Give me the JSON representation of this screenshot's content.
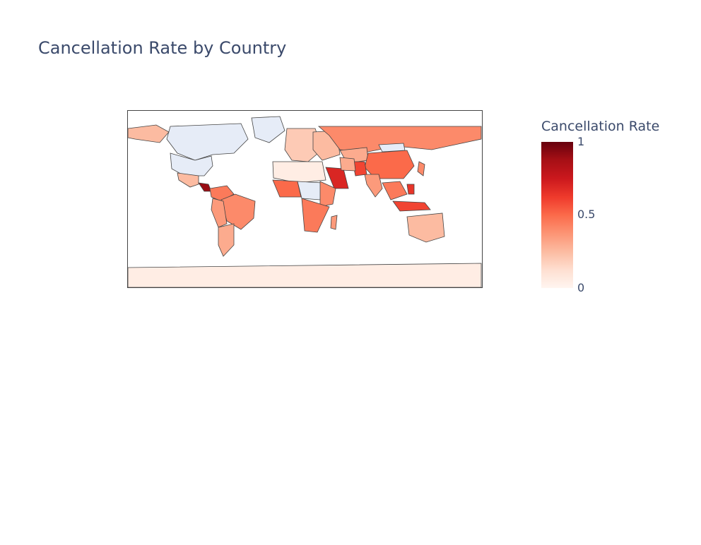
{
  "title": "Cancellation Rate by Country",
  "colorbar": {
    "title": "Cancellation Rate",
    "ticks": [
      "1",
      "0.5",
      "0"
    ],
    "colorscale": [
      "#fff5f0",
      "#fee0d2",
      "#fcbba1",
      "#fc9272",
      "#fb6a4a",
      "#ef3b2c",
      "#cb181d",
      "#a50f15",
      "#67000d"
    ],
    "no_data_color": "#e6ecf7"
  },
  "chart_data": {
    "type": "choropleth",
    "projection": "equirectangular",
    "z_range": [
      0,
      1
    ],
    "locations": [
      {
        "region": "Canada",
        "value": null
      },
      {
        "region": "Greenland",
        "value": null
      },
      {
        "region": "United States",
        "value": null
      },
      {
        "region": "Alaska",
        "value": 0.25
      },
      {
        "region": "Mexico",
        "value": 0.25
      },
      {
        "region": "Central America",
        "value": 0.9
      },
      {
        "region": "Colombia / Venezuela",
        "value": 0.45
      },
      {
        "region": "Brazil",
        "value": 0.4
      },
      {
        "region": "Peru / Bolivia",
        "value": 0.35
      },
      {
        "region": "Argentina / Chile",
        "value": 0.3
      },
      {
        "region": "Western Europe",
        "value": 0.2
      },
      {
        "region": "Eastern Europe",
        "value": 0.25
      },
      {
        "region": "Russia",
        "value": 0.4
      },
      {
        "region": "Kazakhstan",
        "value": 0.3
      },
      {
        "region": "China",
        "value": 0.5
      },
      {
        "region": "Mongolia",
        "value": null
      },
      {
        "region": "India",
        "value": 0.35
      },
      {
        "region": "Pakistan",
        "value": 0.6
      },
      {
        "region": "Saudi Arabia",
        "value": 0.7
      },
      {
        "region": "Iran / Afghanistan",
        "value": 0.3
      },
      {
        "region": "Southeast Asia",
        "value": 0.45
      },
      {
        "region": "Indonesia",
        "value": 0.6
      },
      {
        "region": "Philippines",
        "value": 0.65
      },
      {
        "region": "Japan",
        "value": 0.4
      },
      {
        "region": "Australia",
        "value": 0.25
      },
      {
        "region": "North Africa",
        "value": 0.05
      },
      {
        "region": "West Africa",
        "value": 0.5
      },
      {
        "region": "Central Africa",
        "value": null
      },
      {
        "region": "East Africa",
        "value": 0.4
      },
      {
        "region": "Southern Africa",
        "value": 0.45
      },
      {
        "region": "Madagascar",
        "value": 0.35
      },
      {
        "region": "Antarctica",
        "value": 0.05
      }
    ]
  }
}
